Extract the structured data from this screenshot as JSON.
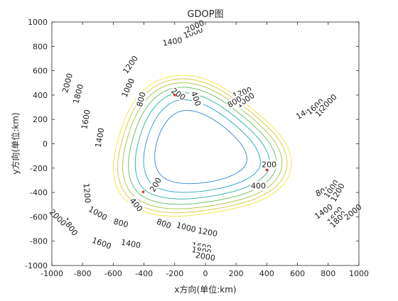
{
  "chart_data": {
    "type": "contour",
    "title": "GDOP图",
    "xlabel": "x方向(单位:km)",
    "ylabel": "y方向(单位:km)",
    "xlim": [
      -1000,
      1000
    ],
    "ylim": [
      -1000,
      1000
    ],
    "xticks": [
      -1000,
      -800,
      -600,
      -400,
      -200,
      0,
      200,
      400,
      600,
      800,
      1000
    ],
    "yticks": [
      -1000,
      -800,
      -600,
      -400,
      -200,
      0,
      200,
      400,
      600,
      800,
      1000
    ],
    "grid": false,
    "stations": [
      {
        "x": -200,
        "y": 400
      },
      {
        "x": 400,
        "y": -215
      },
      {
        "x": -405,
        "y": -395
      }
    ],
    "contour_levels": [
      200,
      400,
      800,
      1000,
      1200,
      1400,
      1600,
      1800,
      2000
    ],
    "level_colors": {
      "200": "#4b3a9a",
      "400": "#4a52c8",
      "800": "#2f84d6",
      "1000": "#1f9ec8",
      "1200": "#22b09a",
      "1400": "#5cbc5c",
      "1600": "#a3c23a",
      "1800": "#d6c630",
      "2000": "#f2e63c"
    },
    "contour_labels": [
      {
        "text": "200",
        "x": -175,
        "y": 410,
        "angle": 35
      },
      {
        "text": "400",
        "x": -60,
        "y": 370,
        "angle": 70
      },
      {
        "text": "800",
        "x": -420,
        "y": 365,
        "angle": -75
      },
      {
        "text": "1000",
        "x": -505,
        "y": 460,
        "angle": -65
      },
      {
        "text": "1200",
        "x": -490,
        "y": 650,
        "angle": -55
      },
      {
        "text": "1400",
        "x": -215,
        "y": 840,
        "angle": -10
      },
      {
        "text": "1600",
        "x": -80,
        "y": 915,
        "angle": -20
      },
      {
        "text": "2000",
        "x": -70,
        "y": 965,
        "angle": -25
      },
      {
        "text": "1800",
        "x": -830,
        "y": 410,
        "angle": -75
      },
      {
        "text": "2000",
        "x": -900,
        "y": 500,
        "angle": -75
      },
      {
        "text": "1600",
        "x": -780,
        "y": 200,
        "angle": -80
      },
      {
        "text": "1400",
        "x": -690,
        "y": 50,
        "angle": -80
      },
      {
        "text": "1200",
        "x": 240,
        "y": 420,
        "angle": -20
      },
      {
        "text": "1000",
        "x": 260,
        "y": 360,
        "angle": -35
      },
      {
        "text": "800",
        "x": 190,
        "y": 345,
        "angle": -30
      },
      {
        "text": "1400",
        "x": 650,
        "y": 260,
        "angle": -30
      },
      {
        "text": "1600",
        "x": 715,
        "y": 305,
        "angle": -40
      },
      {
        "text": "1800",
        "x": 770,
        "y": 290,
        "angle": -45
      },
      {
        "text": "2000",
        "x": 800,
        "y": 340,
        "angle": -45
      },
      {
        "text": "200",
        "x": 415,
        "y": -170,
        "angle": 0
      },
      {
        "text": "400",
        "x": 345,
        "y": -345,
        "angle": 0
      },
      {
        "text": "800",
        "x": 765,
        "y": -390,
        "angle": -20
      },
      {
        "text": "1000",
        "x": 820,
        "y": -370,
        "angle": -55
      },
      {
        "text": "1200",
        "x": 860,
        "y": -400,
        "angle": -60
      },
      {
        "text": "1400",
        "x": 770,
        "y": -555,
        "angle": -35
      },
      {
        "text": "1600",
        "x": 845,
        "y": -590,
        "angle": -50
      },
      {
        "text": "1800",
        "x": 865,
        "y": -620,
        "angle": -45
      },
      {
        "text": "2000",
        "x": 960,
        "y": -560,
        "angle": -40
      },
      {
        "text": "200",
        "x": -325,
        "y": -335,
        "angle": -60
      },
      {
        "text": "400",
        "x": -450,
        "y": -500,
        "angle": 50
      },
      {
        "text": "800",
        "x": -550,
        "y": -650,
        "angle": 15
      },
      {
        "text": "800",
        "x": -270,
        "y": -655,
        "angle": 20
      },
      {
        "text": "1000",
        "x": -125,
        "y": -685,
        "angle": 15
      },
      {
        "text": "1200",
        "x": 15,
        "y": -725,
        "angle": 10
      },
      {
        "text": "1000",
        "x": -700,
        "y": -570,
        "angle": 30
      },
      {
        "text": "1200",
        "x": -770,
        "y": -405,
        "angle": 85
      },
      {
        "text": "1800",
        "x": -880,
        "y": -680,
        "angle": 55
      },
      {
        "text": "2000",
        "x": -960,
        "y": -605,
        "angle": 45
      },
      {
        "text": "1600",
        "x": -675,
        "y": -815,
        "angle": 20
      },
      {
        "text": "1400",
        "x": -485,
        "y": -820,
        "angle": 10
      },
      {
        "text": "1600",
        "x": -25,
        "y": -845,
        "angle": 10
      },
      {
        "text": "1800",
        "x": -25,
        "y": -880,
        "angle": 10
      },
      {
        "text": "2000",
        "x": 0,
        "y": -925,
        "angle": 10
      }
    ]
  }
}
